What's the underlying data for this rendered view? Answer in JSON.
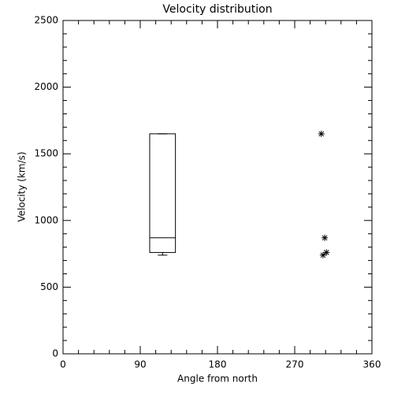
{
  "chart_data": {
    "type": "box",
    "title": "Velocity distribution",
    "xlabel": "Angle from north",
    "ylabel": "Velocity (km/s)",
    "xlim": [
      0,
      360
    ],
    "xticks": [
      0,
      90,
      180,
      270,
      360
    ],
    "ylim": [
      0,
      2500
    ],
    "yticks": [
      0,
      500,
      1000,
      1500,
      2000,
      2500
    ],
    "color": "#000000",
    "box": {
      "x": 116,
      "width": 30,
      "min": 740,
      "q1": 760,
      "median": 870,
      "q3": 1650,
      "max": 1650
    },
    "points": {
      "x": [
        301,
        305,
        307,
        303
      ],
      "y": [
        1650,
        870,
        760,
        740
      ]
    }
  }
}
